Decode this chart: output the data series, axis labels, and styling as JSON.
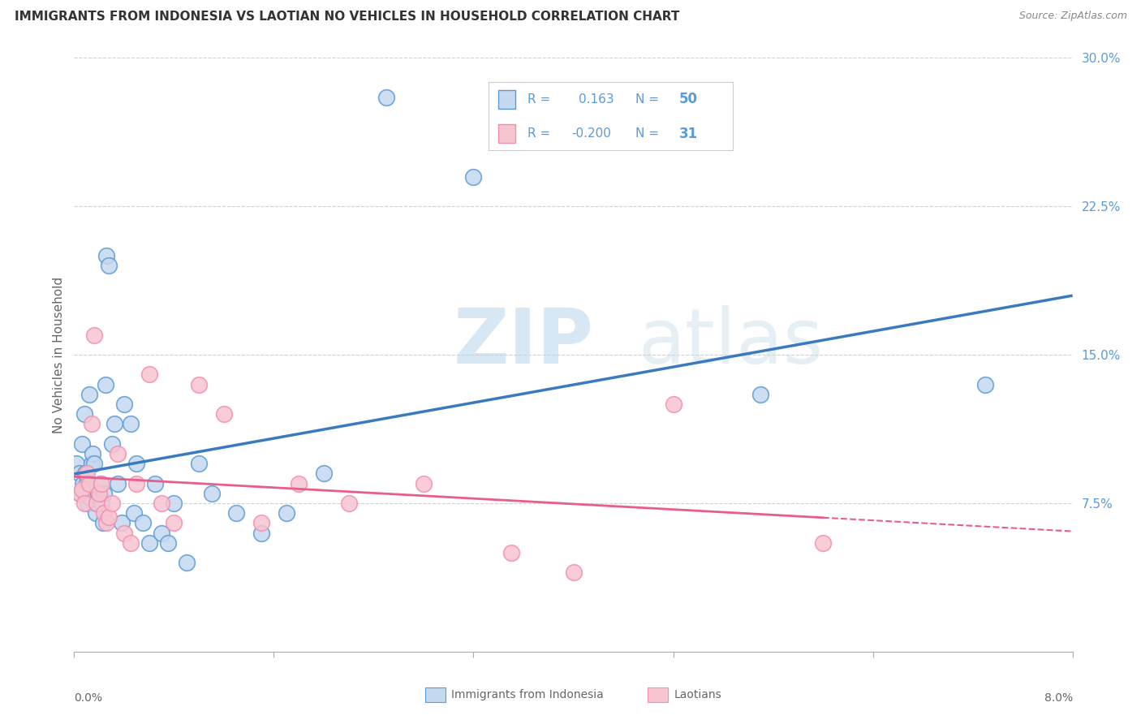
{
  "title": "IMMIGRANTS FROM INDONESIA VS LAOTIAN NO VEHICLES IN HOUSEHOLD CORRELATION CHART",
  "source": "Source: ZipAtlas.com",
  "ylabel": "No Vehicles in Household",
  "yticks": [
    7.5,
    15.0,
    22.5,
    30.0
  ],
  "ytick_labels": [
    "7.5%",
    "15.0%",
    "22.5%",
    "30.0%"
  ],
  "xlim": [
    0.0,
    8.0
  ],
  "ylim": [
    0.0,
    30.0
  ],
  "legend1_r": "0.163",
  "legend1_n": "50",
  "legend2_r": "-0.200",
  "legend2_n": "31",
  "color_blue_fill": "#c5d9f0",
  "color_pink_fill": "#f7c5d0",
  "color_blue_edge": "#5b9bd5",
  "color_pink_edge": "#f48fb1",
  "color_blue_line": "#3a7abf",
  "color_pink_line": "#e85d8a",
  "color_grid": "#d0d0d0",
  "color_ytick": "#5b9bd5",
  "watermark_zip": "ZIP",
  "watermark_atlas": "atlas",
  "indonesia_x": [
    0.02,
    0.04,
    0.05,
    0.06,
    0.07,
    0.08,
    0.09,
    0.1,
    0.11,
    0.12,
    0.13,
    0.14,
    0.15,
    0.16,
    0.17,
    0.18,
    0.19,
    0.2,
    0.21,
    0.22,
    0.23,
    0.24,
    0.25,
    0.26,
    0.28,
    0.3,
    0.32,
    0.35,
    0.38,
    0.4,
    0.45,
    0.48,
    0.5,
    0.55,
    0.6,
    0.65,
    0.7,
    0.75,
    0.8,
    0.9,
    1.0,
    1.1,
    1.3,
    1.5,
    1.7,
    2.0,
    2.5,
    3.2,
    5.5,
    7.3
  ],
  "indonesia_y": [
    9.5,
    9.0,
    8.0,
    10.5,
    8.5,
    12.0,
    9.0,
    8.5,
    7.5,
    13.0,
    7.8,
    9.5,
    10.0,
    9.5,
    7.0,
    7.5,
    8.0,
    7.8,
    8.5,
    7.5,
    6.5,
    8.0,
    13.5,
    20.0,
    19.5,
    10.5,
    11.5,
    8.5,
    6.5,
    12.5,
    11.5,
    7.0,
    9.5,
    6.5,
    5.5,
    8.5,
    6.0,
    5.5,
    7.5,
    4.5,
    9.5,
    8.0,
    7.0,
    6.0,
    7.0,
    9.0,
    28.0,
    24.0,
    13.0,
    13.5
  ],
  "laotian_x": [
    0.04,
    0.06,
    0.08,
    0.1,
    0.12,
    0.14,
    0.16,
    0.18,
    0.2,
    0.22,
    0.24,
    0.26,
    0.28,
    0.3,
    0.35,
    0.4,
    0.45,
    0.5,
    0.6,
    0.7,
    0.8,
    1.0,
    1.2,
    1.5,
    1.8,
    2.2,
    2.8,
    3.5,
    4.0,
    4.8,
    6.0
  ],
  "laotian_y": [
    8.0,
    8.2,
    7.5,
    9.0,
    8.5,
    11.5,
    16.0,
    7.5,
    8.0,
    8.5,
    7.0,
    6.5,
    6.8,
    7.5,
    10.0,
    6.0,
    5.5,
    8.5,
    14.0,
    7.5,
    6.5,
    13.5,
    12.0,
    6.5,
    8.5,
    7.5,
    8.5,
    5.0,
    4.0,
    12.5,
    5.5
  ]
}
